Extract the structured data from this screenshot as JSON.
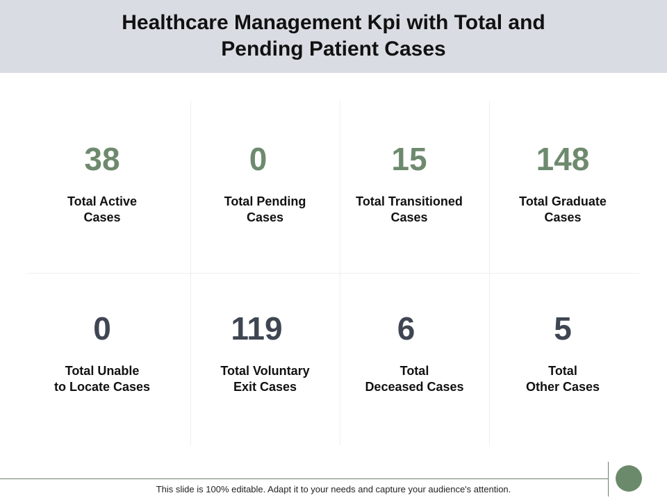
{
  "header": {
    "title": "Healthcare Management Kpi with Total and\nPending Patient Cases"
  },
  "colors": {
    "header_bg": "#d9dde3",
    "green_value": "#6e8a6e",
    "slate_value": "#3f4652",
    "accent_circle": "#6b8a6b"
  },
  "kpis": [
    {
      "value": "38",
      "label": "Total Active\nCases",
      "tone": "green"
    },
    {
      "value": "0",
      "label": "Total Pending\nCases",
      "tone": "green"
    },
    {
      "value": "15",
      "label": "Total Transitioned\nCases",
      "tone": "green"
    },
    {
      "value": "148",
      "label": "Total Graduate\nCases",
      "tone": "green"
    },
    {
      "value": "0",
      "label": "Total Unable\nto Locate Cases",
      "tone": "slate"
    },
    {
      "value": "119",
      "label": "Total Voluntary\nExit Cases",
      "tone": "slate"
    },
    {
      "value": "6",
      "label": "Total\nDeceased Cases",
      "tone": "slate"
    },
    {
      "value": "5",
      "label": "Total\nOther Cases",
      "tone": "slate"
    }
  ],
  "footer": {
    "text": "This slide is 100% editable. Adapt it to your needs and capture your audience's attention."
  }
}
